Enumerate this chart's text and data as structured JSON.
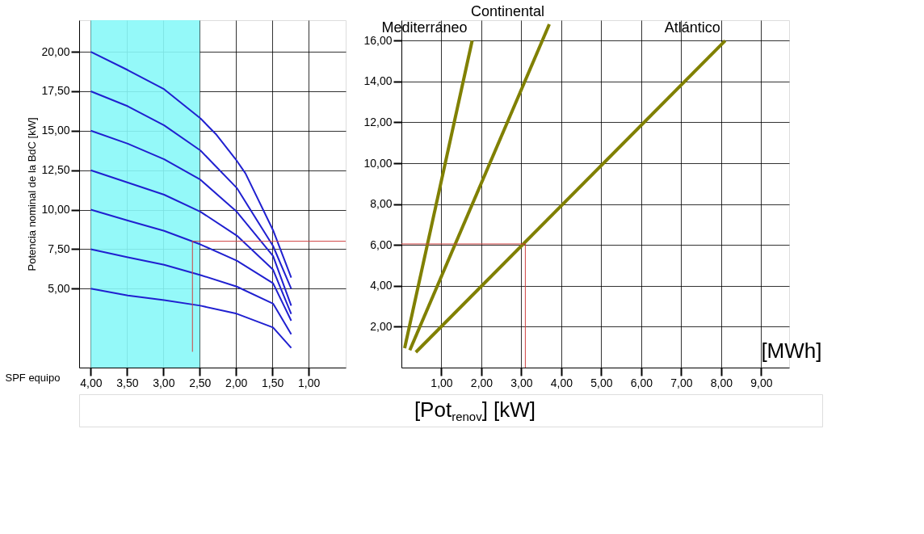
{
  "chart_data": [
    {
      "type": "line",
      "ylabel": "Potencia nominal de la BdC [kW]",
      "xlabel": "SPF equipo",
      "xlim": [
        4.16,
        0.49
      ],
      "ylim": [
        0,
        22
      ],
      "xticks": [
        {
          "value": 4,
          "label": "4,00"
        },
        {
          "value": 3.5,
          "label": "3,50"
        },
        {
          "value": 3,
          "label": "3,00"
        },
        {
          "value": 2.5,
          "label": "2,50"
        },
        {
          "value": 2,
          "label": "2,00"
        },
        {
          "value": 1.5,
          "label": "1,50"
        },
        {
          "value": 1,
          "label": "1,00"
        }
      ],
      "yticks": [
        {
          "value": 5,
          "label": "5,00"
        },
        {
          "value": 7.5,
          "label": "7,50"
        },
        {
          "value": 10,
          "label": "10,00"
        },
        {
          "value": 12.5,
          "label": "12,50"
        },
        {
          "value": 15,
          "label": "15,00"
        },
        {
          "value": 17.5,
          "label": "17,50"
        },
        {
          "value": 20,
          "label": "20,00"
        }
      ],
      "grid": true,
      "bands": [
        {
          "axis": "x",
          "from": 4,
          "to": 2.5,
          "color": "#88f8f8"
        }
      ],
      "series": [
        {
          "color": "#2020d0",
          "x": [
            4,
            3.49,
            2.99,
            2.49,
            2.28,
            1.99,
            1.87,
            1.49,
            1.24
          ],
          "values": [
            20,
            18.84,
            17.63,
            15.78,
            14.8,
            13.1,
            12.3,
            8.7,
            5.7
          ]
        },
        {
          "color": "#2020d0",
          "x": [
            4,
            3.49,
            2.99,
            2.49,
            1.99,
            1.49,
            1.24
          ],
          "values": [
            17.5,
            16.55,
            15.34,
            13.75,
            11.38,
            7.7,
            5.0
          ]
        },
        {
          "color": "#2020d0",
          "x": [
            4,
            3.49,
            2.99,
            2.49,
            1.99,
            1.49,
            1.24
          ],
          "values": [
            15,
            14.18,
            13.19,
            11.9,
            9.87,
            7.07,
            3.92
          ]
        },
        {
          "color": "#2020d0",
          "x": [
            4,
            3.49,
            2.99,
            2.49,
            1.99,
            1.49,
            1.24
          ],
          "values": [
            12.5,
            11.72,
            10.95,
            9.87,
            8.36,
            6.2,
            3.4
          ]
        },
        {
          "color": "#2020d0",
          "x": [
            4,
            3.49,
            2.99,
            2.49,
            1.99,
            1.49,
            1.24
          ],
          "values": [
            10,
            9.31,
            8.66,
            7.8,
            6.77,
            5.34,
            2.97
          ]
        },
        {
          "color": "#2020d0",
          "x": [
            4,
            3.49,
            2.99,
            2.49,
            1.99,
            1.49,
            1.24
          ],
          "values": [
            7.5,
            6.98,
            6.51,
            5.86,
            5.13,
            4.05,
            2.11
          ]
        },
        {
          "color": "#2020d0",
          "x": [
            4,
            3.49,
            2.99,
            2.49,
            1.99,
            1.49,
            1.24
          ],
          "values": [
            5,
            4.57,
            4.27,
            3.92,
            3.41,
            2.54,
            1.25
          ]
        },
        {
          "color": "#d04040",
          "x": [
            2.6,
            2.6,
            0.49
          ],
          "values": [
            1,
            8,
            8
          ]
        }
      ]
    },
    {
      "type": "line",
      "xlabel": "[MWh]",
      "xlim": [
        0,
        9.7
      ],
      "ylim": [
        0,
        17
      ],
      "xticks": [
        {
          "value": 1,
          "label": "1,00"
        },
        {
          "value": 2,
          "label": "2,00"
        },
        {
          "value": 3,
          "label": "3,00"
        },
        {
          "value": 4,
          "label": "4,00"
        },
        {
          "value": 5,
          "label": "5,00"
        },
        {
          "value": 6,
          "label": "6,00"
        },
        {
          "value": 7,
          "label": "7,00"
        },
        {
          "value": 8,
          "label": "8,00"
        },
        {
          "value": 9,
          "label": "9,00"
        }
      ],
      "yticks": [
        {
          "value": 2,
          "label": "2,00"
        },
        {
          "value": 4,
          "label": "4,00"
        },
        {
          "value": 6,
          "label": "6,00"
        },
        {
          "value": 8,
          "label": "8,00"
        },
        {
          "value": 10,
          "label": "10,00"
        },
        {
          "value": 12,
          "label": "12,00"
        },
        {
          "value": 14,
          "label": "14,00"
        },
        {
          "value": 16,
          "label": "16,00"
        }
      ],
      "grid": true,
      "annotations": [
        "[Pot$_{renov}$] [kW]"
      ],
      "series": [
        {
          "name": "Mediterráneo",
          "color": "#808000",
          "x": [
            0.08,
            1.77
          ],
          "values": [
            0.95,
            16
          ]
        },
        {
          "name": "Continental",
          "color": "#808000",
          "x": [
            0.21,
            3.7
          ],
          "values": [
            0.85,
            16.8
          ]
        },
        {
          "name": "Atlántico",
          "color": "#808000",
          "x": [
            0.36,
            8.1
          ],
          "values": [
            0.75,
            16
          ]
        },
        {
          "color": "#d04040",
          "x": [
            0,
            3.1,
            3.1
          ],
          "values": [
            6.05,
            6.05,
            0
          ]
        }
      ]
    }
  ]
}
